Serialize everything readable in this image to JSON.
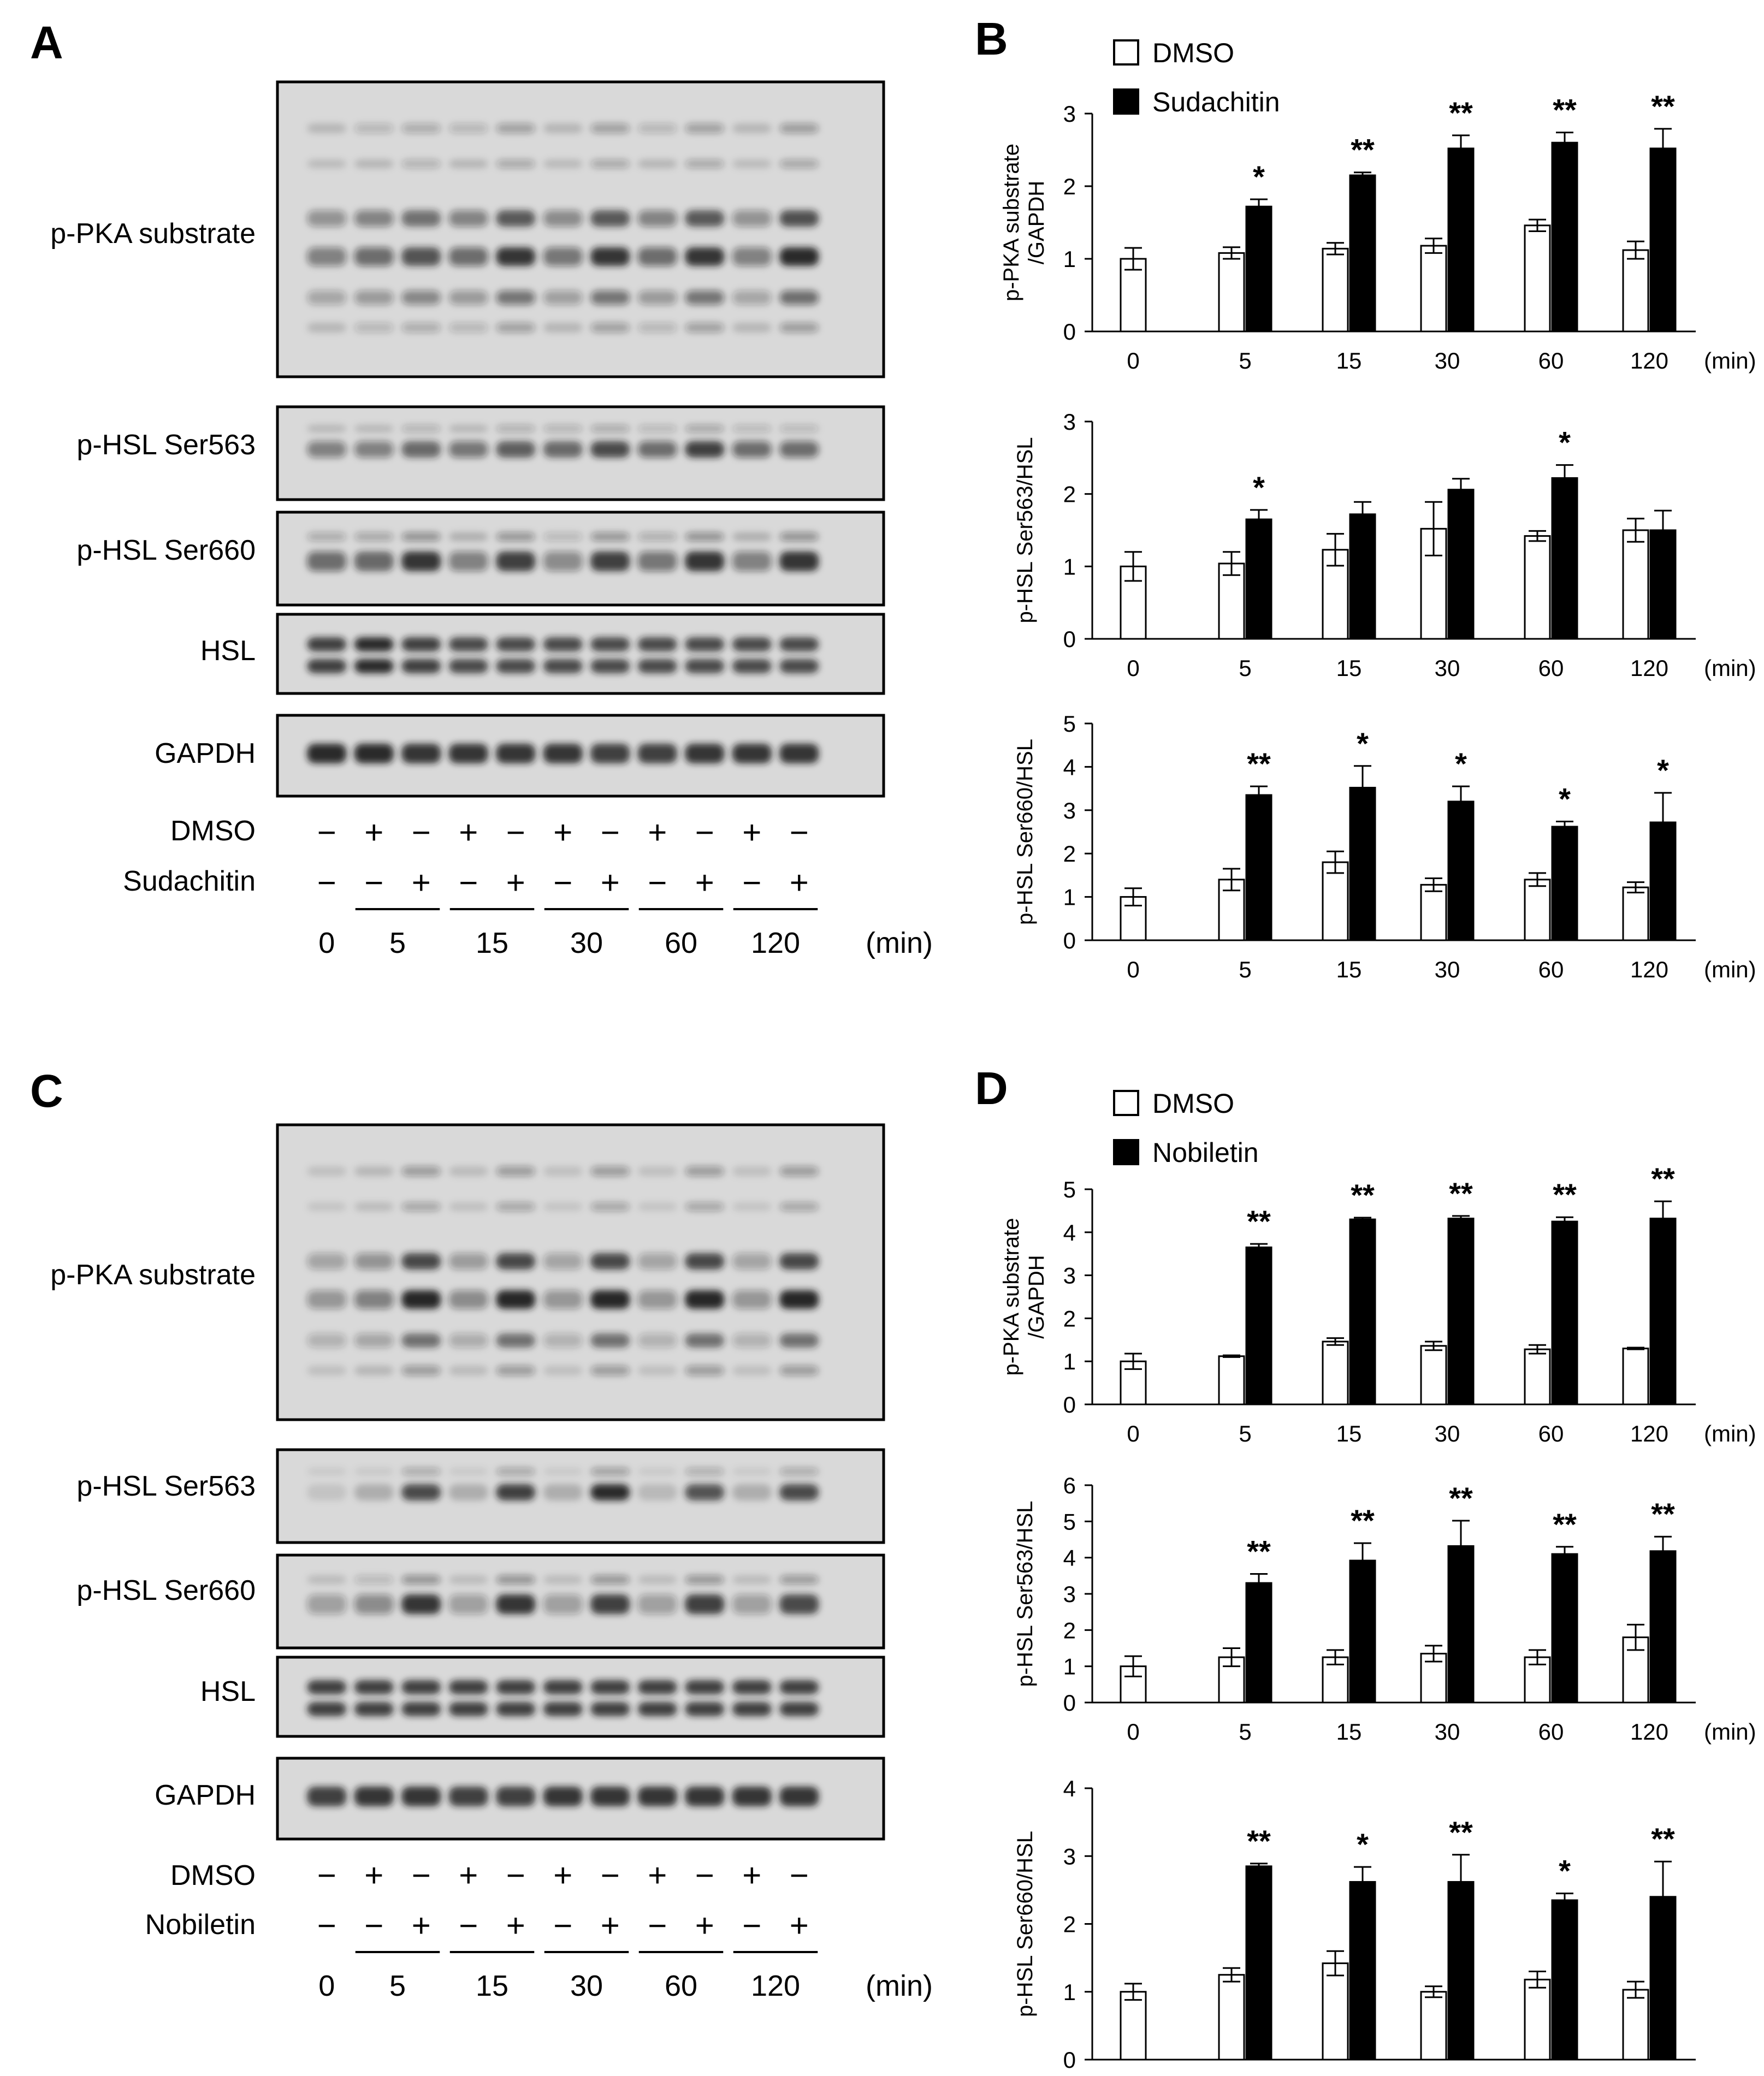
{
  "colors": {
    "dmso_fill": "#ffffff",
    "treatment_fill": "#000000",
    "axis": "#000000",
    "band": "#1a1a1a",
    "blot_bg": "#d9d9d9"
  },
  "blot_labels": [
    "p-PKA substrate",
    "p-HSL Ser563",
    "p-HSL Ser660",
    "HSL",
    "GAPDH"
  ],
  "time_points": [
    "0",
    "5",
    "15",
    "30",
    "60",
    "120"
  ],
  "time_unit": "(min)",
  "dmso_label": "DMSO",
  "dmso_signs": [
    "−",
    "+",
    "−",
    "+",
    "−",
    "+",
    "−",
    "+",
    "−",
    "+",
    "−"
  ],
  "treat_signs": [
    "−",
    "−",
    "+",
    "−",
    "+",
    "−",
    "+",
    "−",
    "+",
    "−",
    "+"
  ],
  "panels": [
    {
      "letter": "A",
      "treatment": "Sudachitin",
      "band_intensity": {
        "pka": [
          0.45,
          0.55,
          0.7,
          0.55,
          0.85,
          0.5,
          0.85,
          0.55,
          0.85,
          0.45,
          0.9
        ],
        "ser563": [
          0.45,
          0.45,
          0.6,
          0.5,
          0.65,
          0.6,
          0.75,
          0.55,
          0.8,
          0.55,
          0.55
        ],
        "ser660": [
          0.55,
          0.6,
          0.85,
          0.45,
          0.8,
          0.4,
          0.8,
          0.5,
          0.85,
          0.45,
          0.85
        ],
        "hsl": [
          0.8,
          0.9,
          0.8,
          0.75,
          0.75,
          0.75,
          0.75,
          0.75,
          0.75,
          0.75,
          0.75
        ],
        "gapdh": [
          0.9,
          0.9,
          0.85,
          0.85,
          0.85,
          0.85,
          0.8,
          0.8,
          0.85,
          0.85,
          0.85
        ]
      }
    },
    {
      "letter": "C",
      "treatment": "Nobiletin",
      "band_intensity": {
        "pka": [
          0.35,
          0.45,
          0.95,
          0.4,
          0.95,
          0.35,
          0.95,
          0.35,
          0.95,
          0.35,
          0.95
        ],
        "ser563": [
          0.1,
          0.2,
          0.75,
          0.2,
          0.8,
          0.2,
          0.9,
          0.15,
          0.7,
          0.2,
          0.75
        ],
        "ser660": [
          0.3,
          0.4,
          0.85,
          0.3,
          0.85,
          0.3,
          0.8,
          0.3,
          0.8,
          0.3,
          0.75
        ],
        "hsl": [
          0.8,
          0.8,
          0.8,
          0.8,
          0.8,
          0.8,
          0.8,
          0.8,
          0.8,
          0.8,
          0.8
        ],
        "gapdh": [
          0.8,
          0.85,
          0.85,
          0.8,
          0.8,
          0.85,
          0.85,
          0.85,
          0.85,
          0.85,
          0.85
        ]
      }
    }
  ],
  "chart_data": [
    {
      "panel": "B",
      "type": "bar",
      "categories": [
        "0",
        "5",
        "15",
        "30",
        "60",
        "120"
      ],
      "xlabel": "(min)",
      "ylabel": "p-PKA substrate\n/GAPDH",
      "ylim": [
        0,
        3
      ],
      "yticks": [
        "0",
        "1",
        "2",
        "3"
      ],
      "series": [
        {
          "name": "DMSO",
          "values": [
            1.0,
            1.08,
            1.14,
            1.18,
            1.46,
            1.12
          ],
          "errors": [
            0.15,
            0.08,
            0.08,
            0.1,
            0.08,
            0.12
          ]
        },
        {
          "name": "Sudachitin",
          "values": [
            null,
            1.72,
            2.15,
            2.52,
            2.6,
            2.52
          ],
          "errors": [
            null,
            0.1,
            0.04,
            0.18,
            0.14,
            0.27
          ]
        }
      ],
      "significance": [
        "",
        "*",
        "**",
        "**",
        "**",
        "**"
      ],
      "legend": [
        "DMSO",
        "Sudachitin"
      ]
    },
    {
      "panel": "B",
      "type": "bar",
      "categories": [
        "0",
        "5",
        "15",
        "30",
        "60",
        "120"
      ],
      "xlabel": "(min)",
      "ylabel": "p-HSL Ser563/HSL",
      "ylim": [
        0,
        3
      ],
      "yticks": [
        "0",
        "1",
        "2",
        "3"
      ],
      "series": [
        {
          "name": "DMSO",
          "values": [
            1.0,
            1.04,
            1.23,
            1.52,
            1.42,
            1.5
          ],
          "errors": [
            0.2,
            0.16,
            0.22,
            0.37,
            0.07,
            0.16
          ]
        },
        {
          "name": "Sudachitin",
          "values": [
            null,
            1.65,
            1.72,
            2.06,
            2.22,
            1.5
          ],
          "errors": [
            null,
            0.13,
            0.17,
            0.15,
            0.18,
            0.27
          ]
        }
      ],
      "significance": [
        "",
        "*",
        "",
        "",
        "*",
        ""
      ]
    },
    {
      "panel": "B",
      "type": "bar",
      "categories": [
        "0",
        "5",
        "15",
        "30",
        "60",
        "120"
      ],
      "xlabel": "(min)",
      "ylabel": "p-HSL Ser660/HSL",
      "ylim": [
        0,
        5
      ],
      "yticks": [
        "0",
        "1",
        "2",
        "3",
        "4",
        "5"
      ],
      "series": [
        {
          "name": "DMSO",
          "values": [
            1.0,
            1.4,
            1.8,
            1.28,
            1.4,
            1.22
          ],
          "errors": [
            0.2,
            0.25,
            0.25,
            0.15,
            0.15,
            0.12
          ]
        },
        {
          "name": "Sudachitin",
          "values": [
            null,
            3.35,
            3.52,
            3.2,
            2.62,
            2.72
          ],
          "errors": [
            null,
            0.2,
            0.5,
            0.35,
            0.12,
            0.68
          ]
        }
      ],
      "significance": [
        "",
        "**",
        "*",
        "*",
        "*",
        "*"
      ]
    },
    {
      "panel": "D",
      "type": "bar",
      "categories": [
        "0",
        "5",
        "15",
        "30",
        "60",
        "120"
      ],
      "xlabel": "(min)",
      "ylabel": "p-PKA substrate\n/GAPDH",
      "ylim": [
        0,
        5
      ],
      "yticks": [
        "0",
        "1",
        "2",
        "3",
        "4",
        "5"
      ],
      "series": [
        {
          "name": "DMSO",
          "values": [
            1.0,
            1.12,
            1.46,
            1.36,
            1.28,
            1.3
          ],
          "errors": [
            0.18,
            0.02,
            0.08,
            0.1,
            0.1,
            0.02
          ]
        },
        {
          "name": "Nobiletin",
          "values": [
            null,
            3.65,
            4.3,
            4.32,
            4.25,
            4.32
          ],
          "errors": [
            null,
            0.08,
            0.04,
            0.06,
            0.1,
            0.4
          ]
        }
      ],
      "significance": [
        "",
        "**",
        "**",
        "**",
        "**",
        "**"
      ],
      "legend": [
        "DMSO",
        "Nobiletin"
      ]
    },
    {
      "panel": "D",
      "type": "bar",
      "categories": [
        "0",
        "5",
        "15",
        "30",
        "60",
        "120"
      ],
      "xlabel": "(min)",
      "ylabel": "p-HSL Ser563/HSL",
      "ylim": [
        0,
        6
      ],
      "yticks": [
        "0",
        "1",
        "2",
        "3",
        "4",
        "5",
        "6"
      ],
      "series": [
        {
          "name": "DMSO",
          "values": [
            1.0,
            1.25,
            1.25,
            1.35,
            1.25,
            1.8
          ],
          "errors": [
            0.28,
            0.25,
            0.2,
            0.22,
            0.2,
            0.35
          ]
        },
        {
          "name": "Nobiletin",
          "values": [
            null,
            3.3,
            3.92,
            4.32,
            4.1,
            4.18
          ],
          "errors": [
            null,
            0.25,
            0.48,
            0.7,
            0.2,
            0.4
          ]
        }
      ],
      "significance": [
        "",
        "**",
        "**",
        "**",
        "**",
        "**"
      ]
    },
    {
      "panel": "D",
      "type": "bar",
      "categories": [
        "0",
        "5",
        "15",
        "30",
        "60",
        "120"
      ],
      "xlabel": "(min)",
      "ylabel": "p-HSL Ser660/HSL",
      "ylim": [
        0,
        4
      ],
      "yticks": [
        "0",
        "1",
        "2",
        "3",
        "4"
      ],
      "series": [
        {
          "name": "DMSO",
          "values": [
            1.0,
            1.25,
            1.42,
            1.0,
            1.18,
            1.03
          ],
          "errors": [
            0.12,
            0.1,
            0.18,
            0.08,
            0.12,
            0.12
          ]
        },
        {
          "name": "Nobiletin",
          "values": [
            null,
            2.85,
            2.62,
            2.62,
            2.35,
            2.4
          ],
          "errors": [
            null,
            0.04,
            0.22,
            0.4,
            0.1,
            0.52
          ]
        }
      ],
      "significance": [
        "",
        "**",
        "*",
        "**",
        "*",
        "**"
      ]
    }
  ]
}
